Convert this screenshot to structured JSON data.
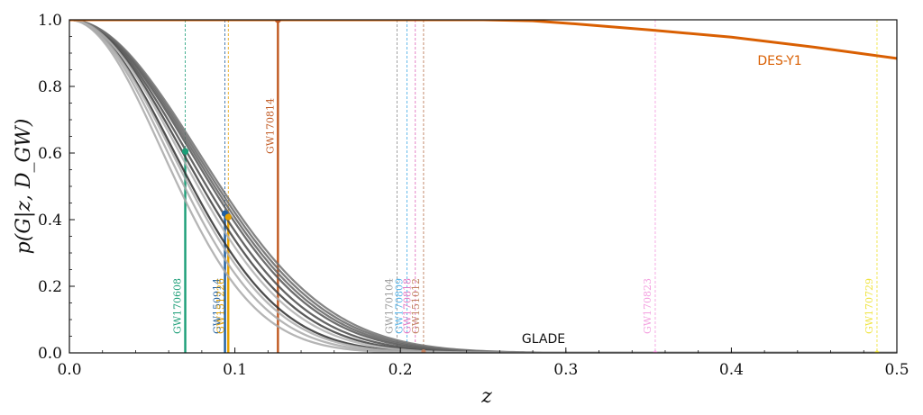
{
  "chart_data": {
    "type": "line",
    "xlabel": "z",
    "ylabel": "p(G|z, D_GW)",
    "xlim": [
      0.0,
      0.5
    ],
    "ylim": [
      0.0,
      1.0
    ],
    "xticks": [
      "0.0",
      "0.1",
      "0.2",
      "0.3",
      "0.4",
      "0.5"
    ],
    "yticks": [
      "0.0",
      "0.2",
      "0.4",
      "0.6",
      "0.8",
      "1.0"
    ],
    "grid": false,
    "series": [
      {
        "name": "DES-Y1",
        "color": "#d95f02",
        "points": [
          [
            0.0,
            1.0
          ],
          [
            0.25,
            1.0
          ],
          [
            0.28,
            0.997
          ],
          [
            0.3,
            0.99
          ],
          [
            0.35,
            0.97
          ],
          [
            0.4,
            0.948
          ],
          [
            0.45,
            0.918
          ],
          [
            0.5,
            0.884
          ]
        ]
      },
      {
        "name": "GLADE",
        "color": "#404040",
        "curves": [
          {
            "sigma": 0.063,
            "color": "#2e2e2e"
          },
          {
            "sigma": 0.068,
            "color": "#3d3d3d"
          },
          {
            "sigma": 0.0705,
            "color": "#4a4a4a"
          },
          {
            "sigma": 0.073,
            "color": "#555555"
          },
          {
            "sigma": 0.0745,
            "color": "#606060"
          },
          {
            "sigma": 0.076,
            "color": "#666666"
          },
          {
            "sigma": 0.0775,
            "color": "#707070"
          },
          {
            "sigma": 0.056,
            "color": "#a8a8a8"
          },
          {
            "sigma": 0.059,
            "color": "#a8a8a8"
          },
          {
            "sigma": 0.0615,
            "color": "#adadad"
          },
          {
            "sigma": 0.066,
            "color": "#b0b0b0"
          }
        ]
      }
    ],
    "events": [
      {
        "name": "GW170608",
        "z": 0.07,
        "value": 0.605,
        "color": "#1b9e77",
        "style": "solid",
        "marker": true
      },
      {
        "name": "GW150914",
        "z": 0.094,
        "value": 0.418,
        "color": "#1f5fa0",
        "style": "solid",
        "marker": true
      },
      {
        "name": "GW151226",
        "z": 0.096,
        "value": 0.408,
        "color": "#e6a000",
        "style": "solid",
        "marker": true
      },
      {
        "name": "GW170814",
        "z": 0.126,
        "value": 1.0,
        "color": "#c0571f",
        "style": "solid",
        "marker": true
      },
      {
        "name": "GW170104",
        "z": 0.198,
        "value": 0.008,
        "color": "#999999",
        "style": "dashed",
        "marker": false
      },
      {
        "name": "GW170809",
        "z": 0.204,
        "value": 0.006,
        "color": "#56b4e9",
        "style": "dashed",
        "marker": false
      },
      {
        "name": "GW170818",
        "z": 0.209,
        "value": 0.005,
        "color": "#e377c2",
        "style": "dashed",
        "marker": false
      },
      {
        "name": "GW151012",
        "z": 0.214,
        "value": 0.004,
        "color": "#c08060",
        "style": "dashed",
        "marker": true
      },
      {
        "name": "GW170823",
        "z": 0.354,
        "value": 0.0,
        "color": "#f4a0e0",
        "style": "dashed",
        "marker": true
      },
      {
        "name": "GW170729",
        "z": 0.488,
        "value": 0.0,
        "color": "#f0e442",
        "style": "dashed",
        "marker": true
      }
    ]
  }
}
